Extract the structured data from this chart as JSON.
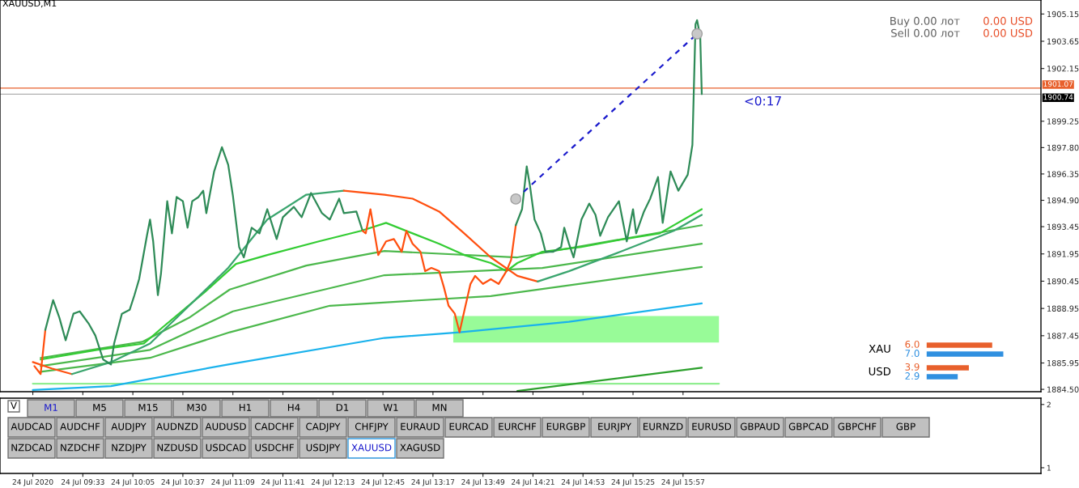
{
  "chart_data": [
    {
      "type": "line",
      "xlim": [
        "2020-07-24T08:40",
        "2020-07-24T19:46"
      ],
      "xticks": [
        {
          "value": "2020-07-24T09:01",
          "label": null
        },
        {
          "value": "2020-07-24T09:33",
          "label": null
        },
        {
          "value": "2020-07-24T10:05",
          "label": null
        },
        {
          "value": "2020-07-24T10:37",
          "label": null
        },
        {
          "value": "2020-07-24T11:09",
          "label": null
        },
        {
          "value": "2020-07-24T11:41",
          "label": null
        },
        {
          "value": "2020-07-24T12:13",
          "label": null
        },
        {
          "value": "2020-07-24T12:45",
          "label": null
        },
        {
          "value": "2020-07-24T13:17",
          "label": null
        },
        {
          "value": "2020-07-24T13:49",
          "label": null
        },
        {
          "value": "2020-07-24T14:21",
          "label": null
        },
        {
          "value": "2020-07-24T14:53",
          "label": null
        },
        {
          "value": "2020-07-24T15:25",
          "label": null
        },
        {
          "value": "2020-07-24T15:57",
          "label": null
        }
      ],
      "ylim": [
        1884.37,
        1905.92
      ],
      "yticks": [
        {
          "value": 1884.5,
          "label": "1884.50"
        },
        {
          "value": 1885.95,
          "label": "1885.95"
        },
        {
          "value": 1887.45,
          "label": "1887.45"
        },
        {
          "value": 1888.95,
          "label": "1888.95"
        },
        {
          "value": 1890.45,
          "label": "1890.45"
        },
        {
          "value": 1891.95,
          "label": "1891.95"
        },
        {
          "value": 1893.45,
          "label": "1893.45"
        },
        {
          "value": 1894.9,
          "label": "1894.90"
        },
        {
          "value": 1896.35,
          "label": "1896.35"
        },
        {
          "value": 1897.8,
          "label": "1897.80"
        },
        {
          "value": 1899.25,
          "label": "1899.25"
        },
        {
          "value": 1902.15,
          "label": "1902.15"
        },
        {
          "value": 1903.65,
          "label": "1903.65"
        },
        {
          "value": 1905.15,
          "label": "1905.15"
        }
      ],
      "tick_labels": "y",
      "ref_lines": [
        {
          "axis": "y",
          "value": 1901.07,
          "label": "1901.07",
          "color": "#e8602c"
        },
        {
          "axis": "y",
          "value": 1900.74,
          "label": "1900.74",
          "color": "#b0b0b0"
        }
      ],
      "annotations": [
        "XAUUSD,M1",
        "Buy 0.00 лот",
        "0.00 USD",
        "Sell 0.00 лот",
        "0.00 USD",
        "<0:17"
      ],
      "series": [
        {
          "color": "#98fb98",
          "x": [
            "2020-07-24T13:30",
            "2020-07-24T16:20"
          ],
          "values": [
            null,
            null
          ],
          "lower": [
            1887.07,
            1887.07
          ],
          "upper": [
            1888.53,
            1888.53
          ]
        },
        {
          "type": "line",
          "color": "#90ee90",
          "x": [
            "2020-07-24T09:01",
            "2020-07-24T16:20"
          ],
          "values": [
            1884.81,
            1884.81
          ]
        },
        {
          "type": "line",
          "color": "#4cb84c",
          "x": [
            "2020-07-24T09:06",
            "2020-07-24T10:11",
            "2020-07-24T10:41",
            "2020-07-24T11:07",
            "2020-07-24T11:56",
            "2020-07-24T12:46",
            "2020-07-24T14:11",
            "2020-07-24T16:09"
          ],
          "values": [
            1886.23,
            1887.11,
            1888.44,
            1889.99,
            1891.31,
            1892.11,
            1891.76,
            1893.53
          ]
        },
        {
          "type": "line",
          "color": "#4cb84c",
          "x": [
            "2020-07-24T09:06",
            "2020-07-24T10:16",
            "2020-07-24T11:09",
            "2020-07-24T12:46",
            "2020-07-24T14:27",
            "2020-07-24T16:09"
          ],
          "values": [
            1885.78,
            1886.67,
            1888.79,
            1890.78,
            1891.18,
            1892.51
          ]
        },
        {
          "type": "line",
          "color": "#4cb84c",
          "x": [
            "2020-07-24T09:06",
            "2020-07-24T10:16",
            "2020-07-24T11:07",
            "2020-07-24T12:11",
            "2020-07-24T13:54",
            "2020-07-24T16:09"
          ],
          "values": [
            1885.47,
            1886.23,
            1887.64,
            1889.1,
            1889.63,
            1891.23
          ]
        },
        {
          "type": "line",
          "color": "#2ca02c",
          "x": [
            "2020-07-24T14:11",
            "2020-07-24T16:09"
          ],
          "values": [
            1884.41,
            1885.69
          ]
        },
        {
          "type": "line",
          "color": "#1ab2ec",
          "x": [
            "2020-07-24T09:01",
            "2020-07-24T09:51",
            "2020-07-24T11:06",
            "2020-07-24T12:46",
            "2020-07-24T13:34",
            "2020-07-24T14:44",
            "2020-07-24T16:09"
          ],
          "values": [
            1884.46,
            1884.68,
            1885.87,
            1887.33,
            1887.64,
            1888.22,
            1889.23
          ]
        },
        {
          "type": "line",
          "color": "#33cc33",
          "x": [
            "2020-07-24T09:06",
            "2020-07-24T09:42",
            "2020-07-24T10:12",
            "2020-07-24T10:24",
            "2020-07-24T10:51",
            "2020-07-24T11:11",
            "2020-07-24T11:31",
            "2020-07-24T12:04",
            "2020-07-24T12:31",
            "2020-07-24T12:47",
            "2020-07-24T13:04",
            "2020-07-24T13:21",
            "2020-07-24T13:37",
            "2020-07-24T13:54",
            "2020-07-24T14:04",
            "2020-07-24T14:11",
            "2020-07-24T14:27",
            "2020-07-24T14:52",
            "2020-07-24T15:17",
            "2020-07-24T15:42",
            "2020-07-24T16:09"
          ],
          "values": [
            1886.14,
            1886.67,
            1887.02,
            1887.91,
            1889.85,
            1891.4,
            1891.89,
            1892.64,
            1893.22,
            1893.66,
            1893.08,
            1892.51,
            1891.89,
            1891.45,
            1891.0,
            1891.45,
            1892.07,
            1892.33,
            1892.73,
            1893.08,
            1894.41
          ]
        },
        {
          "type": "line",
          "color": "#ff4f0f",
          "x": [
            "2020-07-24T09:01",
            "2020-07-24T09:13",
            "2020-07-24T09:26"
          ],
          "values": [
            1886.0,
            1885.65,
            1885.34
          ]
        },
        {
          "type": "line",
          "color": "#3aa56e",
          "x": [
            "2020-07-24T09:26",
            "2020-07-24T09:51",
            "2020-07-24T10:16",
            "2020-07-24T10:41",
            "2020-07-24T11:06",
            "2020-07-24T11:31",
            "2020-07-24T11:56",
            "2020-07-24T12:20"
          ],
          "values": [
            1885.34,
            1886.0,
            1887.02,
            1889.1,
            1891.18,
            1893.84,
            1895.21,
            1895.43
          ]
        },
        {
          "type": "line",
          "color": "#ff4f0f",
          "x": [
            "2020-07-24T12:20",
            "2020-07-24T12:46",
            "2020-07-24T13:04",
            "2020-07-24T13:21",
            "2020-07-24T13:37",
            "2020-07-24T13:54",
            "2020-07-24T14:11",
            "2020-07-24T14:24"
          ],
          "values": [
            1895.43,
            1895.21,
            1894.99,
            1894.28,
            1893.08,
            1891.76,
            1890.74,
            1890.43
          ]
        },
        {
          "type": "line",
          "color": "#3aa56e",
          "x": [
            "2020-07-24T14:24",
            "2020-07-24T14:44",
            "2020-07-24T15:17",
            "2020-07-24T15:51",
            "2020-07-24T16:09"
          ],
          "values": [
            1890.43,
            1891.0,
            1892.07,
            1893.22,
            1894.1
          ]
        },
        {
          "type": "line",
          "color": "#ff4f0f",
          "x": [
            "2020-07-24T09:02",
            "2020-07-24T09:06",
            "2020-07-24T09:09"
          ],
          "values": [
            1885.78,
            1885.34,
            1887.77
          ]
        },
        {
          "type": "line",
          "color": "#2e8b57",
          "x": [
            "2020-07-24T09:09",
            "2020-07-24T09:14",
            "2020-07-24T09:18",
            "2020-07-24T09:22",
            "2020-07-24T09:27",
            "2020-07-24T09:31",
            "2020-07-24T09:37",
            "2020-07-24T09:41",
            "2020-07-24T09:46",
            "2020-07-24T09:51",
            "2020-07-24T09:53",
            "2020-07-24T09:58",
            "2020-07-24T10:03",
            "2020-07-24T10:06",
            "2020-07-24T10:09",
            "2020-07-24T10:14",
            "2020-07-24T10:16",
            "2020-07-24T10:18",
            "2020-07-24T10:21",
            "2020-07-24T10:23",
            "2020-07-24T10:27",
            "2020-07-24T10:30",
            "2020-07-24T10:33",
            "2020-07-24T10:37",
            "2020-07-24T10:40",
            "2020-07-24T10:43",
            "2020-07-24T10:47",
            "2020-07-24T10:50",
            "2020-07-24T10:52",
            "2020-07-24T10:57",
            "2020-07-24T11:02",
            "2020-07-24T11:06",
            "2020-07-24T11:09",
            "2020-07-24T11:13",
            "2020-07-24T11:16",
            "2020-07-24T11:21",
            "2020-07-24T11:26",
            "2020-07-24T11:31",
            "2020-07-24T11:37",
            "2020-07-24T11:41",
            "2020-07-24T11:48",
            "2020-07-24T11:53",
            "2020-07-24T11:59",
            "2020-07-24T12:06",
            "2020-07-24T12:11",
            "2020-07-24T12:17",
            "2020-07-24T12:20",
            "2020-07-24T12:28",
            "2020-07-24T12:32"
          ],
          "values": [
            1887.77,
            1889.41,
            1888.44,
            1887.2,
            1888.66,
            1888.79,
            1888.08,
            1887.46,
            1886.14,
            1885.87,
            1887.02,
            1888.66,
            1888.88,
            1889.68,
            1890.56,
            1892.95,
            1893.84,
            1892.64,
            1889.68,
            1890.87,
            1894.85,
            1893.08,
            1895.08,
            1894.85,
            1893.39,
            1894.85,
            1895.08,
            1895.43,
            1894.19,
            1896.49,
            1897.82,
            1896.85,
            1895.16,
            1892.33,
            1891.76,
            1893.39,
            1893.08,
            1894.41,
            1892.77,
            1893.97,
            1894.54,
            1893.97,
            1895.3,
            1894.19,
            1893.84,
            1894.99,
            1894.19,
            1894.28,
            1893.22
          ]
        },
        {
          "type": "line",
          "color": "#ff4f0f",
          "x": [
            "2020-07-24T12:32",
            "2020-07-24T12:34",
            "2020-07-24T12:37",
            "2020-07-24T12:42",
            "2020-07-24T12:47",
            "2020-07-24T12:52",
            "2020-07-24T12:57",
            "2020-07-24T13:00",
            "2020-07-24T13:04",
            "2020-07-24T13:09",
            "2020-07-24T13:12",
            "2020-07-24T13:16",
            "2020-07-24T13:21",
            "2020-07-24T13:24",
            "2020-07-24T13:27",
            "2020-07-24T13:31",
            "2020-07-24T13:34",
            "2020-07-24T13:37",
            "2020-07-24T13:41",
            "2020-07-24T13:44",
            "2020-07-24T13:49",
            "2020-07-24T13:54",
            "2020-07-24T13:59",
            "2020-07-24T14:04",
            "2020-07-24T14:07",
            "2020-07-24T14:10"
          ],
          "values": [
            1893.22,
            1893.08,
            1894.41,
            1891.89,
            1892.64,
            1892.77,
            1892.07,
            1893.22,
            1892.51,
            1892.07,
            1891.0,
            1891.18,
            1891.0,
            1890.12,
            1889.1,
            1888.66,
            1887.64,
            1888.79,
            1890.3,
            1890.74,
            1890.3,
            1890.56,
            1890.3,
            1891.0,
            1891.62,
            1893.53
          ]
        },
        {
          "type": "line",
          "color": "#2e8b57",
          "x": [
            "2020-07-24T14:10",
            "2020-07-24T14:14",
            "2020-07-24T14:17",
            "2020-07-24T14:19",
            "2020-07-24T14:22",
            "2020-07-24T14:26",
            "2020-07-24T14:29",
            "2020-07-24T14:34",
            "2020-07-24T14:39",
            "2020-07-24T14:41",
            "2020-07-24T14:44",
            "2020-07-24T14:47",
            "2020-07-24T14:52",
            "2020-07-24T14:57",
            "2020-07-24T15:01",
            "2020-07-24T15:04",
            "2020-07-24T15:09",
            "2020-07-24T15:16",
            "2020-07-24T15:21",
            "2020-07-24T15:25",
            "2020-07-24T15:27",
            "2020-07-24T15:32",
            "2020-07-24T15:36",
            "2020-07-24T15:41",
            "2020-07-24T15:44",
            "2020-07-24T15:49",
            "2020-07-24T15:54",
            "2020-07-24T16:00",
            "2020-07-24T16:03",
            "2020-07-24T16:05",
            "2020-07-24T16:06",
            "2020-07-24T16:08",
            "2020-07-24T16:09"
          ],
          "values": [
            1893.53,
            1894.41,
            1896.76,
            1895.74,
            1893.84,
            1893.08,
            1892.07,
            1892.07,
            1892.33,
            1893.39,
            1892.51,
            1891.76,
            1893.84,
            1894.72,
            1894.1,
            1892.95,
            1893.97,
            1894.85,
            1892.64,
            1894.41,
            1893.08,
            1894.28,
            1894.99,
            1896.18,
            1893.66,
            1896.49,
            1895.43,
            1896.31,
            1897.95,
            1904.59,
            1904.81,
            1903.92,
            1900.74
          ]
        },
        {
          "type": "line",
          "color": "#1a1acc",
          "line_style": "dashed",
          "marker": "circle",
          "x": [
            "2020-07-24T14:10",
            "2020-07-24T16:06"
          ],
          "values": [
            1894.97,
            1904.06
          ]
        }
      ]
    },
    {
      "type": "bar",
      "orientation": "horizontal",
      "categories": [
        "XAU",
        "USD"
      ],
      "series": [
        {
          "color": "#e8602c",
          "values": [
            6.0,
            3.9
          ],
          "value_labels": [
            "6.0",
            "3.9"
          ]
        },
        {
          "color": "#3090e0",
          "values": [
            7.0,
            2.9
          ],
          "value_labels": [
            "7.0",
            "2.9"
          ]
        }
      ]
    },
    {
      "type": "line",
      "xlim": [
        "2020-07-24T08:40",
        "2020-07-24T19:46"
      ],
      "xticks": [
        {
          "value": "2020-07-24T09:01",
          "label": "24 Jul 2020"
        },
        {
          "value": "2020-07-24T09:33",
          "label": "24 Jul 09:33"
        },
        {
          "value": "2020-07-24T10:05",
          "label": "24 Jul 10:05"
        },
        {
          "value": "2020-07-24T10:37",
          "label": "24 Jul 10:37"
        },
        {
          "value": "2020-07-24T11:09",
          "label": "24 Jul 11:09"
        },
        {
          "value": "2020-07-24T11:41",
          "label": "24 Jul 11:41"
        },
        {
          "value": "2020-07-24T12:13",
          "label": "24 Jul 12:13"
        },
        {
          "value": "2020-07-24T12:45",
          "label": "24 Jul 12:45"
        },
        {
          "value": "2020-07-24T13:17",
          "label": "24 Jul 13:17"
        },
        {
          "value": "2020-07-24T13:49",
          "label": "24 Jul 13:49"
        },
        {
          "value": "2020-07-24T14:21",
          "label": "24 Jul 14:21"
        },
        {
          "value": "2020-07-24T14:53",
          "label": "24 Jul 14:53"
        },
        {
          "value": "2020-07-24T15:25",
          "label": "24 Jul 15:25"
        },
        {
          "value": "2020-07-24T15:57",
          "label": "24 Jul 15:57"
        }
      ],
      "ylim": [
        0.91,
        2.1
      ],
      "yticks": [
        1,
        2
      ],
      "annotations": [
        "V",
        "M1",
        "M5",
        "M15",
        "M30",
        "H1",
        "H4",
        "D1",
        "W1",
        "MN",
        "AUDCAD",
        "AUDCHF",
        "AUDJPY",
        "AUDNZD",
        "AUDUSD",
        "CADCHF",
        "CADJPY",
        "CHFJPY",
        "EURAUD",
        "EURCAD",
        "EURCHF",
        "EURGBP",
        "EURJPY",
        "EURNZD",
        "EURUSD",
        "GBPAUD",
        "GBPCAD",
        "GBPCHF",
        "GBP",
        "NZDCAD",
        "NZDCHF",
        "NZDJPY",
        "NZDUSD",
        "USDCAD",
        "USDCHF",
        "USDJPY",
        "XAUUSD",
        "XAGUSD"
      ]
    }
  ]
}
